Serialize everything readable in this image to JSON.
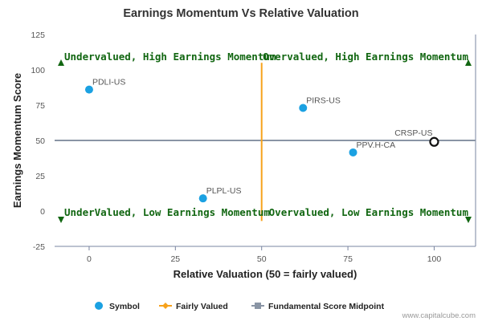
{
  "chart_data": {
    "type": "scatter",
    "title": "Earnings Momentum Vs Relative Valuation",
    "xlabel": "Relative Valuation (50 = fairly valued)",
    "ylabel": "Earnings Momentum Score",
    "xlim": [
      -10,
      112
    ],
    "ylim": [
      -25,
      125
    ],
    "x_ticks": [
      0,
      25,
      50,
      75,
      100
    ],
    "y_ticks": [
      -25,
      0,
      25,
      50,
      75,
      100,
      125
    ],
    "grid": false,
    "points": [
      {
        "label": "PDLI-US",
        "x": 0,
        "y": 86,
        "highlight": false
      },
      {
        "label": "PIRS-US",
        "x": 62,
        "y": 73,
        "highlight": false
      },
      {
        "label": "PPV.H-CA",
        "x": 76.5,
        "y": 41.5,
        "highlight": false
      },
      {
        "label": "CRSP-US",
        "x": 100,
        "y": 49,
        "highlight": true
      },
      {
        "label": "PLPL-US",
        "x": 33,
        "y": 9,
        "highlight": false
      }
    ],
    "fairly_valued_x": 50,
    "midpoint_y": 50,
    "fairly_valued_line_y": [
      -7,
      105
    ],
    "quadrants": {
      "top_left": "Undervalued, High Earnings Momentum",
      "top_right": "Overvalued, High Earnings Momentum",
      "bottom_left": "UnderValued, Low Earnings Momentum",
      "bottom_right": "Overvalued, Low Earnings Momentum"
    },
    "legend": {
      "position": "bottom",
      "items": [
        {
          "name": "Symbol",
          "color": "#1ba1e2",
          "marker": "circle"
        },
        {
          "name": "Fairly Valued",
          "color": "#f7a21b",
          "marker": "diamond-line"
        },
        {
          "name": "Fundamental Score Midpoint",
          "color": "#8a95a5",
          "marker": "square-line"
        }
      ]
    }
  },
  "colors": {
    "point": "#1ba1e2",
    "highlight_stroke": "#111111",
    "fairly_valued": "#f7a21b",
    "midpoint": "#8a95a5",
    "quadrant_text": "#116611",
    "arrow": "#116611",
    "axis": "#7a86a0"
  },
  "credit": "www.capitalcube.com"
}
